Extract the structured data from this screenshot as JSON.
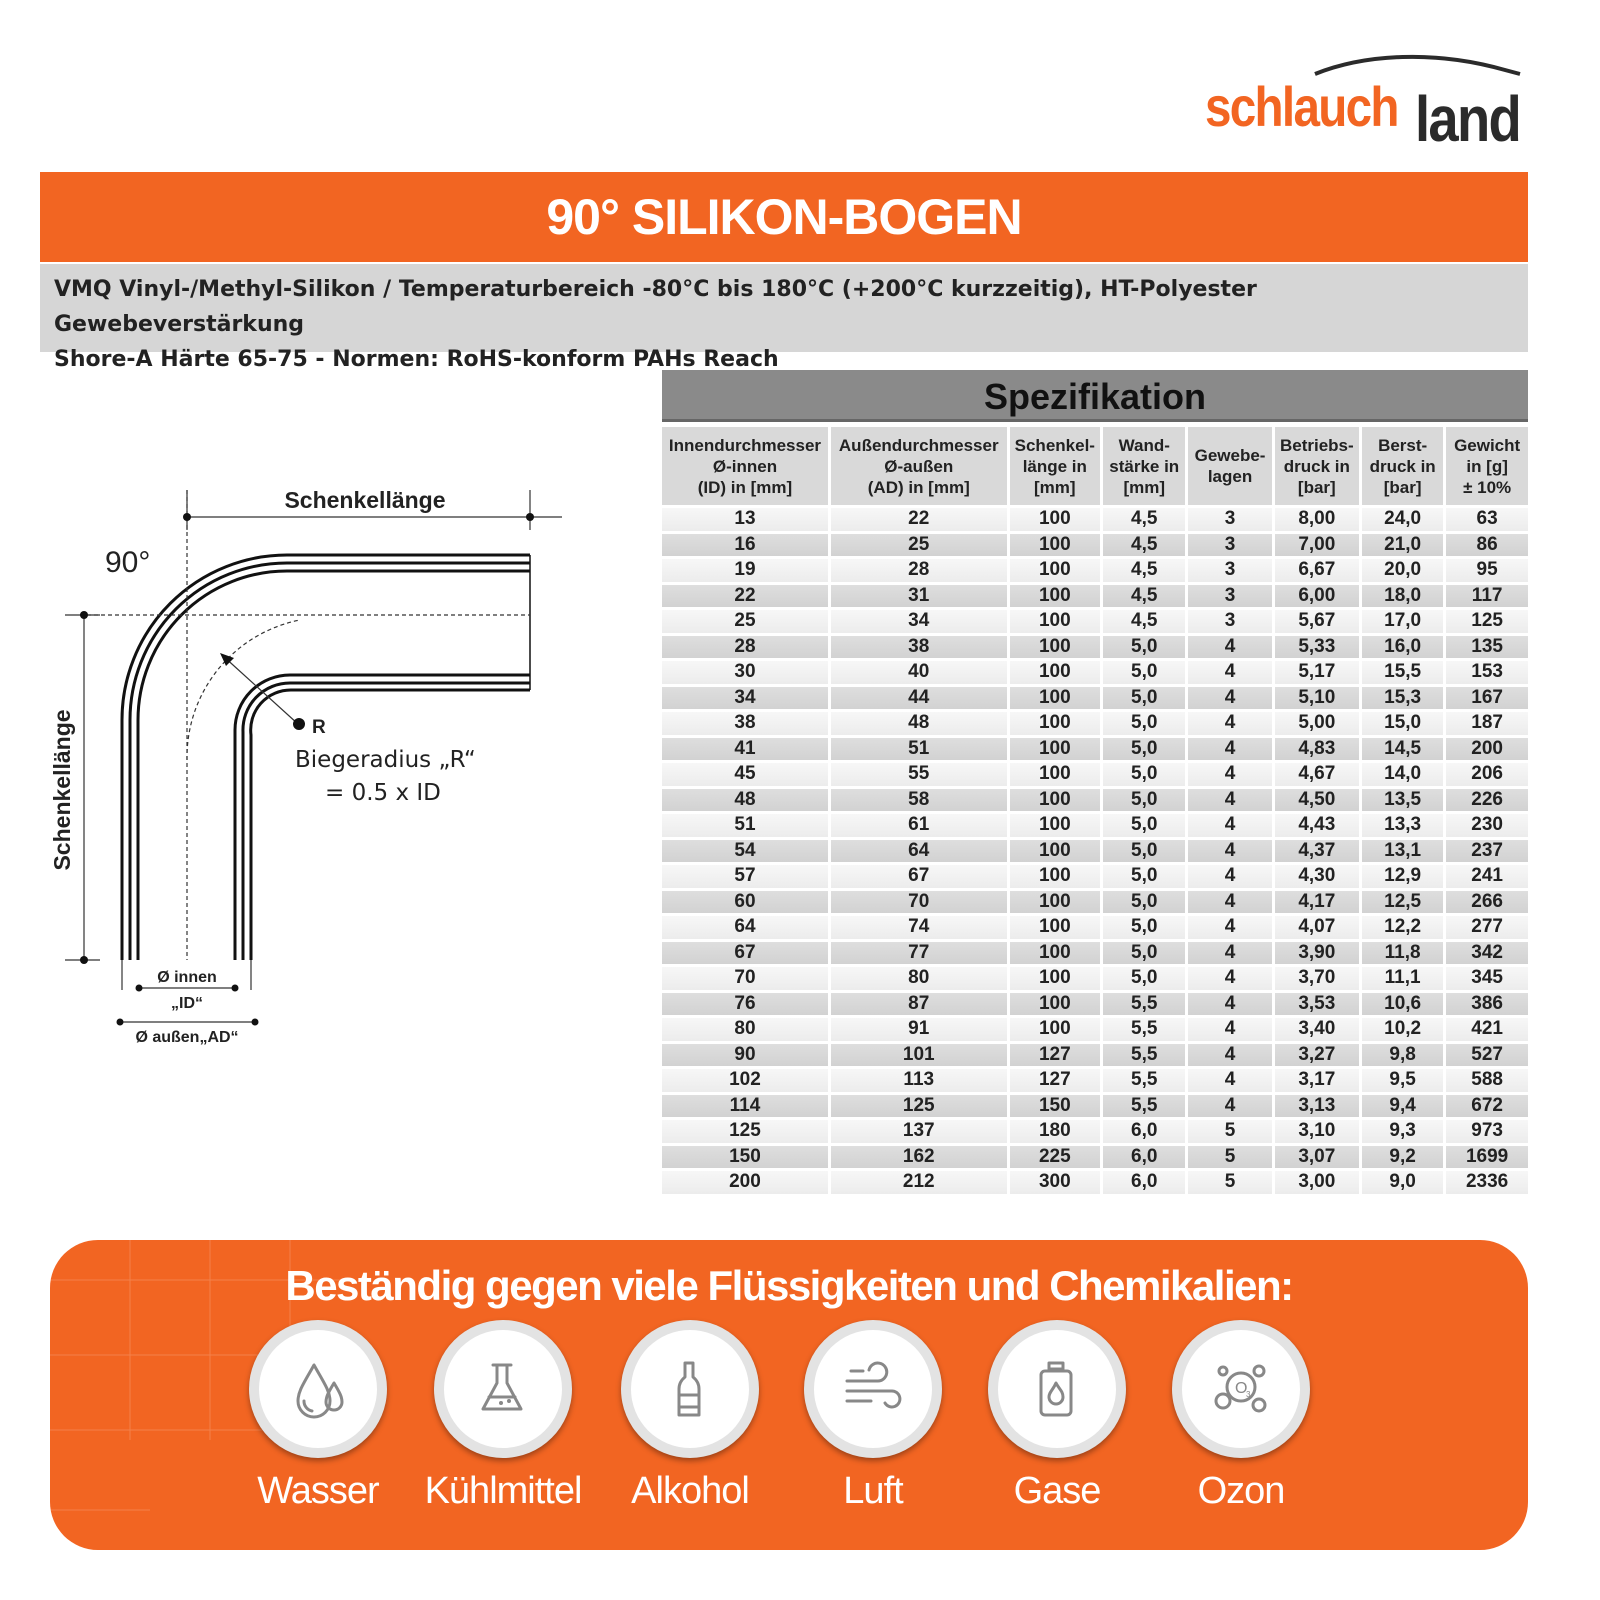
{
  "logo": {
    "part1": "schlauch",
    "part2": "land"
  },
  "title": "90° SILIKON-BOGEN",
  "description": {
    "line1": "VMQ Vinyl-/Methyl-Silikon / Temperaturbereich -80°C bis 180°C (+200°C kurzzeitig), HT-Polyester Gewebeverstärkung",
    "line2": "Shore-A Härte 65-75  -  Normen: RoHS-konform PAHs Reach"
  },
  "diagram": {
    "angle": "90°",
    "leg_top": "Schenkellänge",
    "leg_side": "Schenkellänge",
    "r_label": "R",
    "bend_radius_line1": "Biegeradius „R“",
    "bend_radius_line2": "= 0.5  x  ID",
    "inner_line1": "Ø innen",
    "inner_line2": "„ID“",
    "outer": "Ø außen„AD“"
  },
  "spec": {
    "title": "Spezifikation",
    "headers": [
      [
        "Innendurchmesser",
        "Ø-innen",
        "(ID) in [mm]"
      ],
      [
        "Außendurchmesser",
        "Ø-außen",
        "(AD) in [mm]"
      ],
      [
        "Schenkel-",
        "länge in",
        "[mm]"
      ],
      [
        "Wand-",
        "stärke in",
        "[mm]"
      ],
      [
        "Gewebe-",
        "lagen"
      ],
      [
        "Betriebs-",
        "druck in",
        "[bar]"
      ],
      [
        "Berst-",
        "druck in",
        "[bar]"
      ],
      [
        "Gewicht",
        "in [g]",
        "± 10%"
      ]
    ],
    "rows": [
      [
        "13",
        "22",
        "100",
        "4,5",
        "3",
        "8,00",
        "24,0",
        "63"
      ],
      [
        "16",
        "25",
        "100",
        "4,5",
        "3",
        "7,00",
        "21,0",
        "86"
      ],
      [
        "19",
        "28",
        "100",
        "4,5",
        "3",
        "6,67",
        "20,0",
        "95"
      ],
      [
        "22",
        "31",
        "100",
        "4,5",
        "3",
        "6,00",
        "18,0",
        "117"
      ],
      [
        "25",
        "34",
        "100",
        "4,5",
        "3",
        "5,67",
        "17,0",
        "125"
      ],
      [
        "28",
        "38",
        "100",
        "5,0",
        "4",
        "5,33",
        "16,0",
        "135"
      ],
      [
        "30",
        "40",
        "100",
        "5,0",
        "4",
        "5,17",
        "15,5",
        "153"
      ],
      [
        "34",
        "44",
        "100",
        "5,0",
        "4",
        "5,10",
        "15,3",
        "167"
      ],
      [
        "38",
        "48",
        "100",
        "5,0",
        "4",
        "5,00",
        "15,0",
        "187"
      ],
      [
        "41",
        "51",
        "100",
        "5,0",
        "4",
        "4,83",
        "14,5",
        "200"
      ],
      [
        "45",
        "55",
        "100",
        "5,0",
        "4",
        "4,67",
        "14,0",
        "206"
      ],
      [
        "48",
        "58",
        "100",
        "5,0",
        "4",
        "4,50",
        "13,5",
        "226"
      ],
      [
        "51",
        "61",
        "100",
        "5,0",
        "4",
        "4,43",
        "13,3",
        "230"
      ],
      [
        "54",
        "64",
        "100",
        "5,0",
        "4",
        "4,37",
        "13,1",
        "237"
      ],
      [
        "57",
        "67",
        "100",
        "5,0",
        "4",
        "4,30",
        "12,9",
        "241"
      ],
      [
        "60",
        "70",
        "100",
        "5,0",
        "4",
        "4,17",
        "12,5",
        "266"
      ],
      [
        "64",
        "74",
        "100",
        "5,0",
        "4",
        "4,07",
        "12,2",
        "277"
      ],
      [
        "67",
        "77",
        "100",
        "5,0",
        "4",
        "3,90",
        "11,8",
        "342"
      ],
      [
        "70",
        "80",
        "100",
        "5,0",
        "4",
        "3,70",
        "11,1",
        "345"
      ],
      [
        "76",
        "87",
        "100",
        "5,5",
        "4",
        "3,53",
        "10,6",
        "386"
      ],
      [
        "80",
        "91",
        "100",
        "5,5",
        "4",
        "3,40",
        "10,2",
        "421"
      ],
      [
        "90",
        "101",
        "127",
        "5,5",
        "4",
        "3,27",
        "9,8",
        "527"
      ],
      [
        "102",
        "113",
        "127",
        "5,5",
        "4",
        "3,17",
        "9,5",
        "588"
      ],
      [
        "114",
        "125",
        "150",
        "5,5",
        "4",
        "3,13",
        "9,4",
        "672"
      ],
      [
        "125",
        "137",
        "180",
        "6,0",
        "5",
        "3,10",
        "9,3",
        "973"
      ],
      [
        "150",
        "162",
        "225",
        "6,0",
        "5",
        "3,07",
        "9,2",
        "1699"
      ],
      [
        "200",
        "212",
        "300",
        "6,0",
        "5",
        "3,00",
        "9,0",
        "2336"
      ]
    ]
  },
  "resistance": {
    "title": "Beständig gegen viele Flüssigkeiten und Chemikalien:",
    "items": [
      {
        "label": "Wasser",
        "icon": "water-drops-icon"
      },
      {
        "label": "Kühlmittel",
        "icon": "flask-icon"
      },
      {
        "label": "Alkohol",
        "icon": "bottle-icon"
      },
      {
        "label": "Luft",
        "icon": "wind-icon"
      },
      {
        "label": "Gase",
        "icon": "gas-cylinder-icon"
      },
      {
        "label": "Ozon",
        "icon": "ozone-icon"
      }
    ]
  },
  "colors": {
    "accent": "#f26522",
    "band": "#d6d6d6",
    "table_header": "#8a8a8a"
  }
}
